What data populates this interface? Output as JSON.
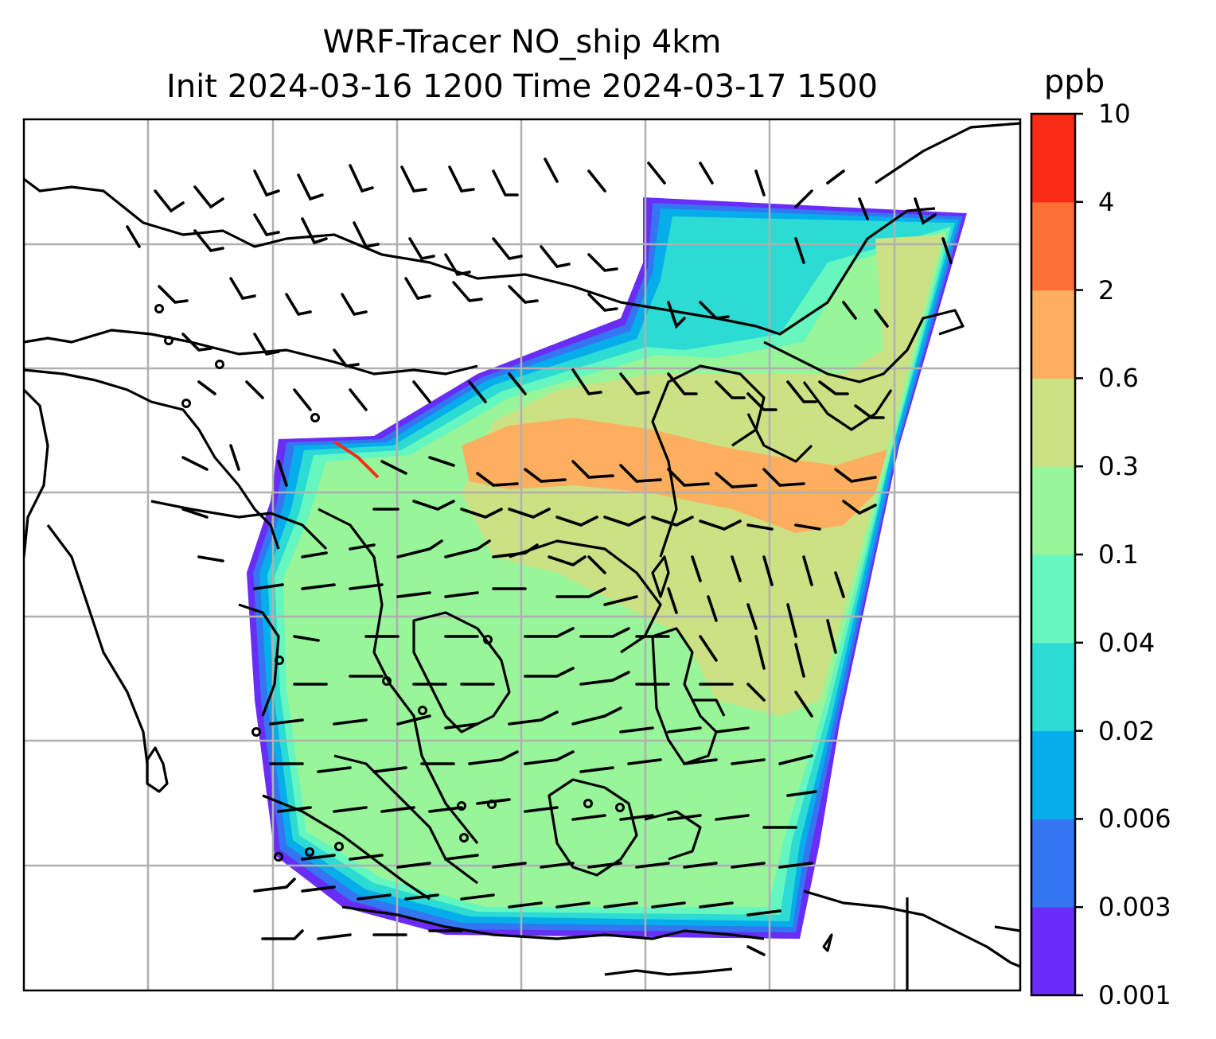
{
  "title_line1": "WRF-Tracer NO_ship 4km",
  "title_line2": "Init 2024-03-16 1200 Time 2024-03-17 1500",
  "colorbar": {
    "unit": "ppb",
    "levels": [
      "0.001",
      "0.003",
      "0.006",
      "0.02",
      "0.04",
      "0.1",
      "0.3",
      "0.6",
      "2",
      "4",
      "10"
    ],
    "colors": [
      "#6a2cf7",
      "#3475f2",
      "#05aeea",
      "#2ddbd5",
      "#65f7bf",
      "#98f599",
      "#cce084",
      "#fdae5f",
      "#fc7036",
      "#f92b17"
    ]
  },
  "map": {
    "gridline_color": "#b0b0b0",
    "coastline_color": "#000000",
    "layers": [
      "NO_ship concentration (filled contours)",
      "wind barbs",
      "coastlines",
      "gridlines"
    ]
  }
}
